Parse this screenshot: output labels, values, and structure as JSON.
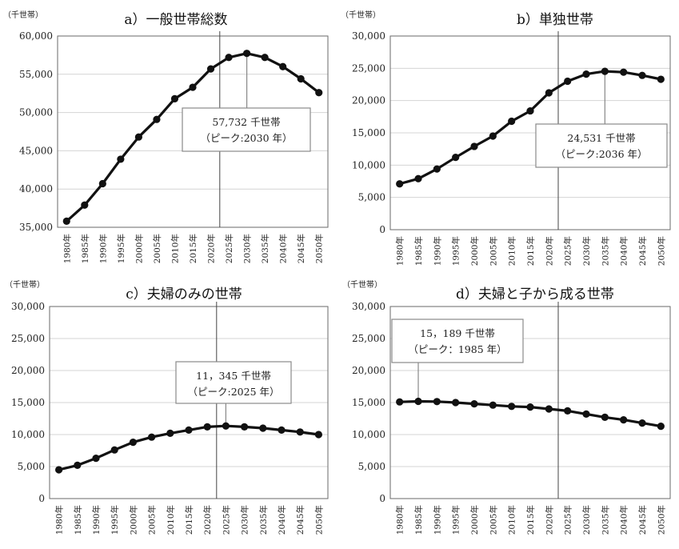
{
  "chart_data": [
    {
      "type": "line",
      "title": "a）一般世帯総数",
      "ylabel": "（千世帯）",
      "categories": [
        "1980年",
        "1985年",
        "1990年",
        "1995年",
        "2000年",
        "2005年",
        "2010年",
        "2015年",
        "2020年",
        "2025年",
        "2030年",
        "2035年",
        "2040年",
        "2045年",
        "2050年"
      ],
      "values": [
        35800,
        37900,
        40700,
        43900,
        46800,
        49100,
        51800,
        53300,
        55700,
        57200,
        57732,
        57200,
        56000,
        54400,
        52600
      ],
      "ylim": [
        35000,
        60000
      ],
      "yticks": [
        "35,000",
        "40,000",
        "45,000",
        "50,000",
        "55,000",
        "60,000"
      ],
      "ytick_values": [
        35000,
        40000,
        45000,
        50000,
        55000,
        60000
      ],
      "grid": true,
      "divider_after": "2020年",
      "callout": {
        "line1": "57,732 千世帯",
        "line2": "（ピーク:2030 年）",
        "category_index": 10
      }
    },
    {
      "type": "line",
      "title": "b）単独世帯",
      "ylabel": "（千世帯）",
      "categories": [
        "1980年",
        "1985年",
        "1990年",
        "1995年",
        "2000年",
        "2005年",
        "2010年",
        "2015年",
        "2020年",
        "2025年",
        "2030年",
        "2035年",
        "2040年",
        "2045年",
        "2050年"
      ],
      "values": [
        7100,
        7900,
        9400,
        11200,
        12900,
        14500,
        16800,
        18400,
        21200,
        23000,
        24100,
        24531,
        24400,
        23900,
        23300
      ],
      "ylim": [
        0,
        30000
      ],
      "yticks": [
        "0",
        "5,000",
        "10,000",
        "15,000",
        "20,000",
        "25,000",
        "30,000"
      ],
      "ytick_values": [
        0,
        5000,
        10000,
        15000,
        20000,
        25000,
        30000
      ],
      "grid": true,
      "divider_after": "2020年",
      "callout": {
        "line1": "24,531 千世帯",
        "line2": "（ピーク:2036 年）",
        "category_index": 11
      }
    },
    {
      "type": "line",
      "title": "c）夫婦のみの世帯",
      "ylabel": "（千世帯）",
      "categories": [
        "1980年",
        "1985年",
        "1990年",
        "1995年",
        "2000年",
        "2005年",
        "2010年",
        "2015年",
        "2020年",
        "2025年",
        "2030年",
        "2035年",
        "2040年",
        "2045年",
        "2050年"
      ],
      "values": [
        4500,
        5200,
        6300,
        7600,
        8800,
        9600,
        10200,
        10700,
        11200,
        11345,
        11200,
        11000,
        10700,
        10400,
        10000
      ],
      "ylim": [
        0,
        30000
      ],
      "yticks": [
        "0",
        "5,000",
        "10,000",
        "15,000",
        "20,000",
        "25,000",
        "30,000"
      ],
      "ytick_values": [
        0,
        5000,
        10000,
        15000,
        20000,
        25000,
        30000
      ],
      "grid": true,
      "divider_after": "2020年",
      "callout": {
        "line1": "11，345 千世帯",
        "line2": "（ピーク:2025 年）",
        "category_index": 9
      }
    },
    {
      "type": "line",
      "title": "d）夫婦と子から成る世帯",
      "ylabel": "（千世帯）",
      "categories": [
        "1980年",
        "1985年",
        "1990年",
        "1995年",
        "2000年",
        "2005年",
        "2010年",
        "2015年",
        "2020年",
        "2025年",
        "2030年",
        "2035年",
        "2040年",
        "2045年",
        "2050年"
      ],
      "values": [
        15100,
        15189,
        15150,
        15000,
        14800,
        14600,
        14400,
        14300,
        14000,
        13700,
        13200,
        12700,
        12300,
        11800,
        11300
      ],
      "ylim": [
        0,
        30000
      ],
      "yticks": [
        "0",
        "5,000",
        "10,000",
        "15,000",
        "20,000",
        "25,000",
        "30,000"
      ],
      "ytick_values": [
        0,
        5000,
        10000,
        15000,
        20000,
        25000,
        30000
      ],
      "grid": true,
      "divider_after": "2020年",
      "callout": {
        "line1": "15，189 千世帯",
        "line2": "（ピーク：1985 年）",
        "category_index": 1
      }
    }
  ]
}
